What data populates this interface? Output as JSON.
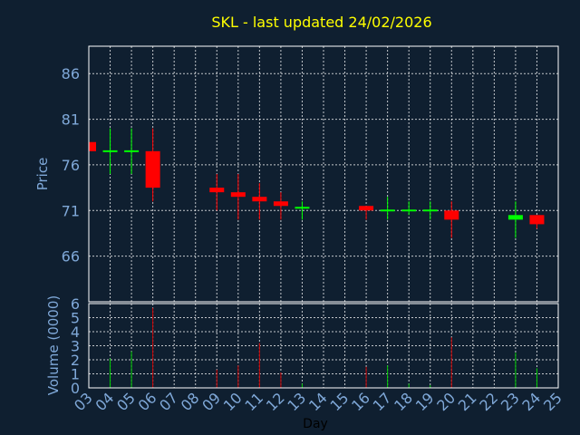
{
  "colors": {
    "background": "#0f1f30",
    "text": "#7fa8d8",
    "title": "#ffff00",
    "grid": "#ffffff",
    "up": "#00ff00",
    "down": "#ff0000",
    "flat": "#00ff00",
    "volume_up": "#00cc00",
    "volume_down": "#cc0000"
  },
  "chart_data": [
    {
      "type": "candlestick",
      "title": "SKL - last updated 24/02/2026",
      "ylabel": "Price",
      "xlabel": "",
      "ylim": [
        61,
        89
      ],
      "yticks": [
        66,
        71,
        76,
        81,
        86
      ],
      "grid": true,
      "x": [
        "03",
        "04",
        "05",
        "06",
        "09",
        "10",
        "11",
        "12",
        "13",
        "16",
        "17",
        "18",
        "19",
        "20",
        "23",
        "24"
      ],
      "open": [
        78.5,
        77.5,
        77.5,
        77.5,
        73.5,
        73.0,
        72.5,
        72.0,
        71.3,
        71.5,
        71.0,
        71.0,
        71.0,
        71.0,
        70.0,
        70.5
      ],
      "high": [
        78.5,
        80.0,
        80.0,
        80.0,
        75.0,
        75.0,
        74.0,
        73.0,
        72.0,
        71.5,
        72.5,
        72.0,
        72.0,
        72.0,
        72.0,
        70.5
      ],
      "low": [
        77.5,
        75.0,
        75.0,
        72.0,
        71.0,
        70.0,
        70.0,
        70.0,
        70.0,
        70.0,
        70.0,
        70.5,
        70.0,
        68.0,
        68.0,
        69.0
      ],
      "close": [
        77.5,
        77.5,
        77.5,
        73.5,
        73.0,
        72.5,
        72.0,
        71.5,
        71.3,
        71.0,
        71.0,
        71.0,
        71.0,
        70.0,
        70.5,
        69.5
      ]
    },
    {
      "type": "bar",
      "ylabel": "Volume (0000)",
      "xlabel": "Day",
      "ylim": [
        0,
        6
      ],
      "yticks": [
        0,
        1,
        2,
        3,
        4,
        5,
        6
      ],
      "x_ticks": [
        "03",
        "04",
        "05",
        "06",
        "07",
        "08",
        "09",
        "10",
        "11",
        "12",
        "13",
        "14",
        "15",
        "16",
        "17",
        "18",
        "19",
        "20",
        "21",
        "22",
        "23",
        "24",
        "25"
      ],
      "x": [
        "03",
        "04",
        "05",
        "06",
        "09",
        "10",
        "11",
        "12",
        "13",
        "16",
        "17",
        "18",
        "19",
        "20",
        "23",
        "24"
      ],
      "values": [
        0.0,
        2.1,
        2.6,
        5.7,
        1.3,
        1.6,
        3.2,
        1.1,
        0.3,
        1.5,
        1.6,
        0.3,
        0.2,
        3.6,
        2.5,
        1.4
      ],
      "direction": [
        "down",
        "flat",
        "flat",
        "down",
        "down",
        "down",
        "down",
        "down",
        "up",
        "down",
        "up",
        "up",
        "up",
        "down",
        "up",
        "up"
      ]
    }
  ]
}
